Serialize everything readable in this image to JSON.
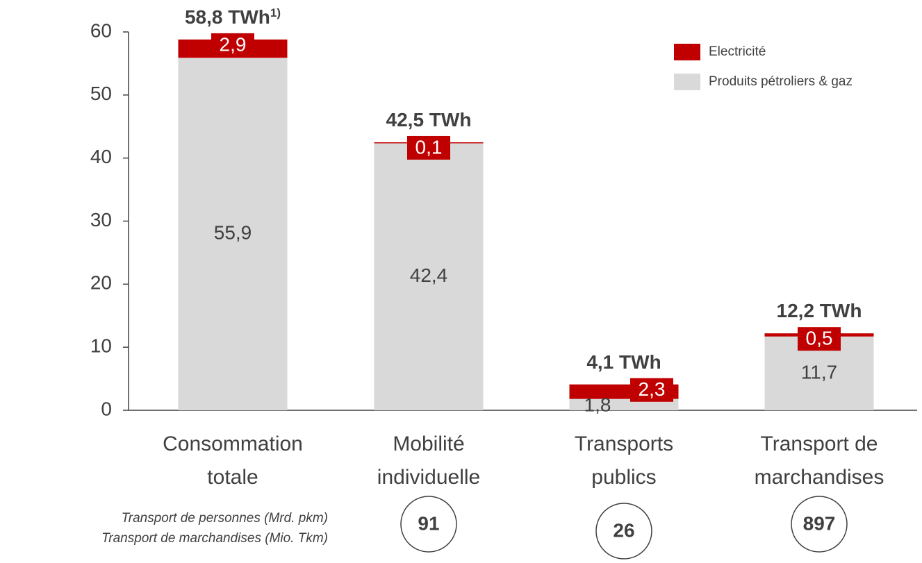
{
  "chart_data": {
    "type": "stacked_bar",
    "categories": [
      [
        "Consommation",
        "totale"
      ],
      [
        "Mobilité",
        "individuelle"
      ],
      [
        "Transports",
        "publics"
      ],
      [
        "Transport de",
        "marchandises"
      ]
    ],
    "series": [
      {
        "name": "Produits pétroliers & gaz",
        "color": "#d9d9d9",
        "values": [
          55.9,
          42.4,
          1.8,
          11.7
        ],
        "value_labels": [
          "55,9",
          "42,4",
          "1,8",
          "11,7"
        ]
      },
      {
        "name": "Electricité",
        "color": "#c00000",
        "values": [
          2.9,
          0.1,
          2.3,
          0.5
        ],
        "value_labels": [
          "2,9",
          "0,1",
          "2,3",
          "0,5"
        ]
      }
    ],
    "totals": [
      58.8,
      42.5,
      4.1,
      12.2
    ],
    "total_labels": [
      "58,8 TWh",
      "42,5 TWh",
      "4,1 TWh",
      "12,2 TWh"
    ],
    "total_footnote": "1)",
    "ylim": [
      0,
      60
    ],
    "yticks": [
      0,
      10,
      20,
      30,
      40,
      50,
      60
    ],
    "legend": "top-right",
    "row_labels": [
      "Transport de personnes (Mrd.  pkm)",
      "Transport de marchandises (Mio. Tkm)"
    ],
    "circle_values": [
      null,
      91,
      26,
      897
    ]
  }
}
